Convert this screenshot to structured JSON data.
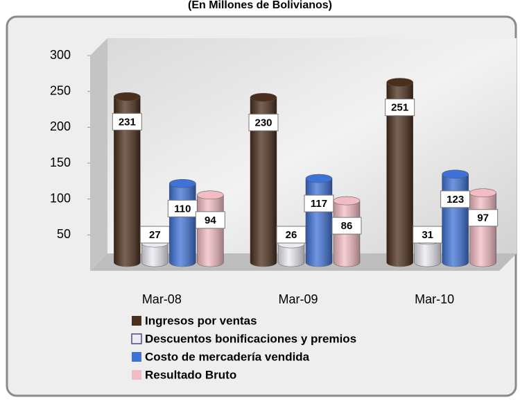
{
  "chart_data": {
    "type": "bar",
    "title": "(En Millones de Bolivianos)",
    "categories": [
      "Mar-08",
      "Mar-09",
      "Mar-10"
    ],
    "series": [
      {
        "name": "Ingresos por ventas",
        "color": "#4b2e1c",
        "values": [
          231,
          230,
          251
        ]
      },
      {
        "name": "Descuentos bonificaciones y premios",
        "color": "#eceaf2",
        "values": [
          27,
          26,
          31
        ]
      },
      {
        "name": "Costo de mercadería vendida",
        "color": "#3f72d6",
        "values": [
          110,
          117,
          123
        ]
      },
      {
        "name": "Resultado Bruto",
        "color": "#f2bcc4",
        "values": [
          94,
          86,
          97
        ]
      }
    ],
    "ylim": [
      0,
      300
    ],
    "yticks": [
      50,
      100,
      150,
      200,
      250,
      300
    ],
    "grid": false
  }
}
